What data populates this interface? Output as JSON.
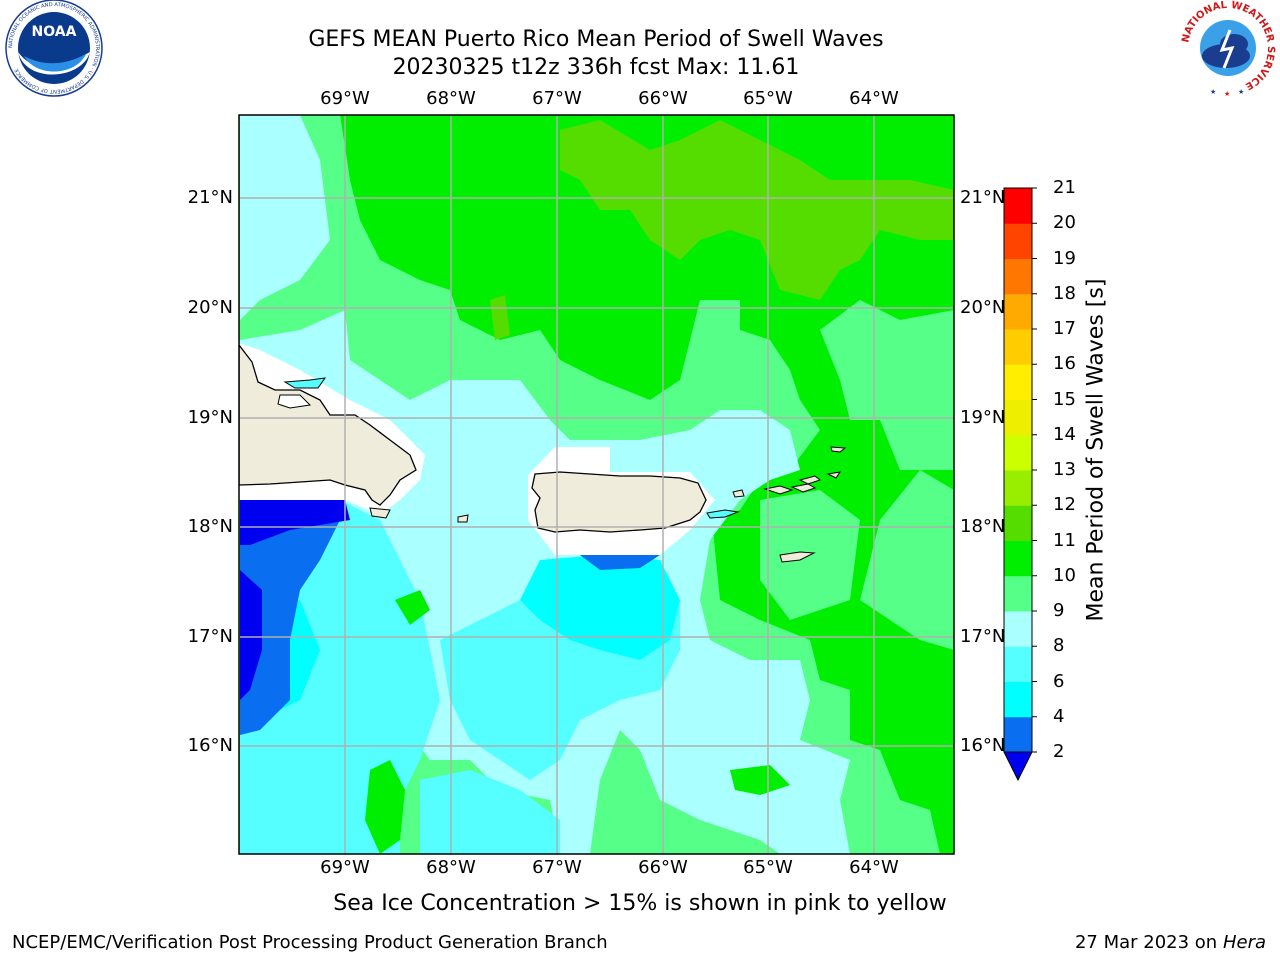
{
  "header": {
    "title_line1": "GEFS MEAN Puerto Rico Mean Period of Swell Waves",
    "title_line2": "20230325 t12z 336h fcst   Max: 11.61"
  },
  "logos": {
    "left": {
      "icon": "noaa-logo",
      "text": "NOAA",
      "ring_text": "NATIONAL OCEANIC AND ATMOSPHERIC ADMINISTRATION · U.S. DEPARTMENT OF COMMERCE"
    },
    "right": {
      "icon": "national-weather-service-logo",
      "ring_text": "NATIONAL WEATHER SERVICE"
    }
  },
  "map": {
    "lon_ticks": [
      "69°W",
      "68°W",
      "67°W",
      "66°W",
      "65°W",
      "64°W"
    ],
    "lat_ticks": [
      "21°N",
      "20°N",
      "19°N",
      "18°N",
      "17°N",
      "16°N"
    ],
    "grid": true,
    "land_color": "#efecdc",
    "islands": [
      "Hispaniola",
      "Puerto Rico",
      "Virgin Islands",
      "St. Croix"
    ]
  },
  "colorbar": {
    "title": "Mean Period of Swell Waves [s]",
    "levels": [
      "2",
      "4",
      "6",
      "8",
      "9",
      "10",
      "11",
      "12",
      "13",
      "14",
      "15",
      "16",
      "17",
      "18",
      "19",
      "20",
      "21"
    ],
    "colors": [
      "#0000f0",
      "#0a6ef0",
      "#00ffff",
      "#55ffff",
      "#aaffff",
      "#55ff88",
      "#00ee00",
      "#55dd00",
      "#99ee00",
      "#ccff00",
      "#eeee00",
      "#ffee00",
      "#ffcc00",
      "#ffaa00",
      "#ff7700",
      "#ff4400",
      "#ff0000"
    ],
    "under_color": "#0000f0"
  },
  "footer": {
    "ice_note": "Sea Ice Concentration > 15% is shown in pink to yellow",
    "credit": "NCEP/EMC/Verification Post Processing Product Generation Branch",
    "date": "27 Mar 2023 on",
    "host": "Hera"
  }
}
